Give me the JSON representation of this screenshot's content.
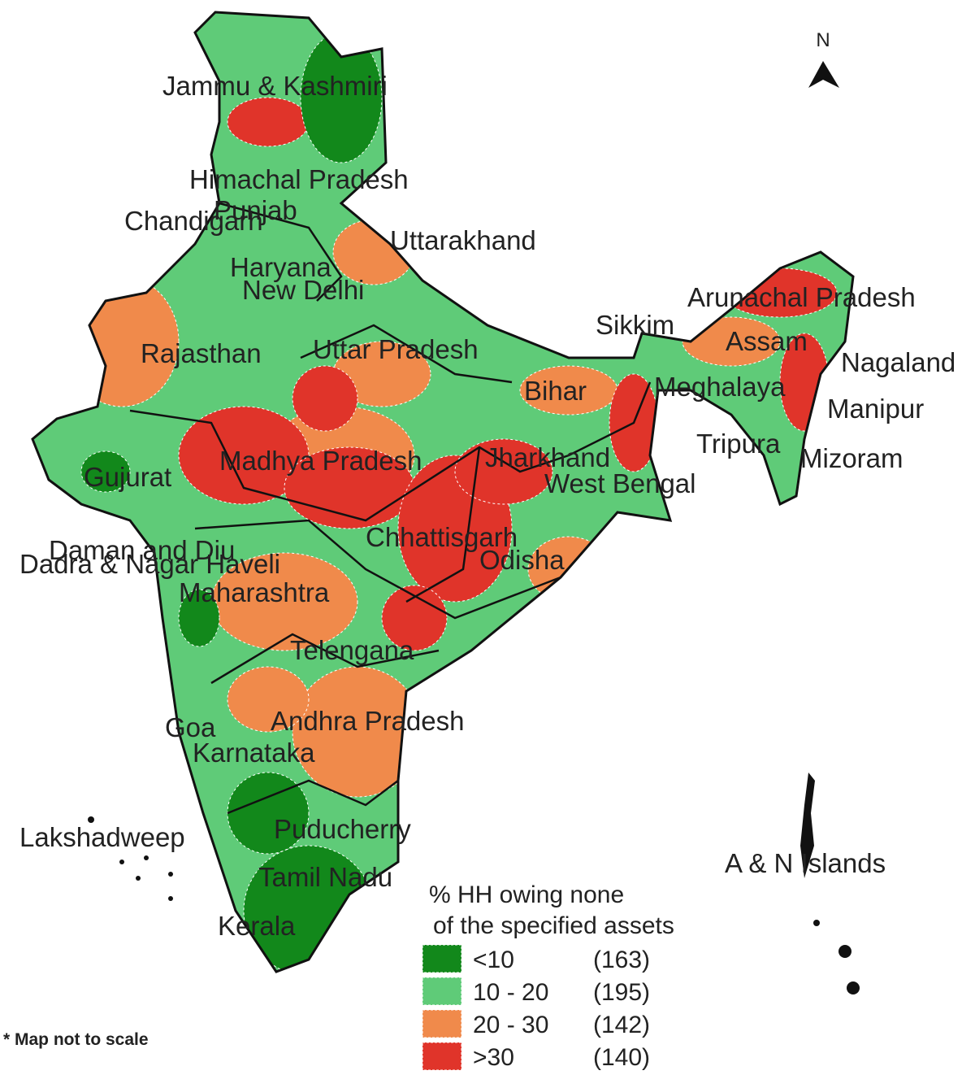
{
  "map": {
    "labels": [
      "Jammu & Kashmiri",
      "Himachal Pradesh",
      "Punjab",
      "Chandigarh",
      "Uttarakhand",
      "Haryana",
      "New Delhi",
      "Rajasthan",
      "Uttar Pradesh",
      "Sikkim",
      "Arunachal Pradesh",
      "Assam",
      "Nagaland",
      "Bihar",
      "Meghalaya",
      "Manipur",
      "Tripura",
      "Mizoram",
      "Jharkhand",
      "West Bengal",
      "Gujurat",
      "Madhya Pradesh",
      "Chhattisgarh",
      "Odisha",
      "Daman and Diu",
      "Dadra & Nagar Haveli",
      "Maharashtra",
      "Telengana",
      "Goa",
      "Andhra Pradesh",
      "Karnataka",
      "Lakshadweep",
      "Puducherry",
      "A & N Islands",
      "Tamil Nadu",
      "Kerala"
    ],
    "north": "N",
    "note": "* Map not to scale"
  },
  "legend": {
    "title": [
      "% HH owing none",
      "of the specified assets"
    ],
    "items": [
      {
        "range": "<10",
        "count": "(163)",
        "color": "#12881b"
      },
      {
        "range": "10 - 20",
        "count": "(195)",
        "color": "#5fcb78"
      },
      {
        "range": "20 - 30",
        "count": "(142)",
        "color": "#f08a4b"
      },
      {
        "range": ">30",
        "count": "(140)",
        "color": "#e0342a"
      }
    ]
  }
}
